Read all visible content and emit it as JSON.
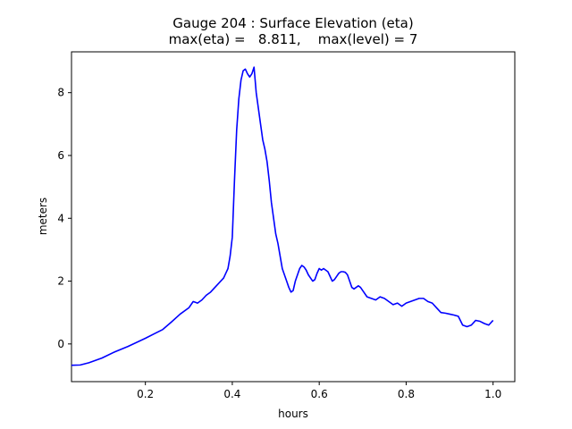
{
  "chart_data": {
    "type": "line",
    "title": "Gauge 204 : Surface Elevation (eta)",
    "subtitle": "max(eta) =   8.811,    max(level) = 7",
    "xlabel": "hours",
    "ylabel": "meters",
    "xlim": [
      0.03,
      1.05
    ],
    "ylim": [
      -1.2,
      9.3
    ],
    "x_ticks": [
      0.2,
      0.4,
      0.6,
      0.8,
      1.0
    ],
    "x_tick_labels": [
      "0.2",
      "0.4",
      "0.6",
      "0.8",
      "1.0"
    ],
    "y_ticks": [
      0,
      2,
      4,
      6,
      8
    ],
    "y_tick_labels": [
      "0",
      "2",
      "4",
      "6",
      "8"
    ],
    "grid": false,
    "series": [
      {
        "color": "#0000ff",
        "x": [
          0.03,
          0.05,
          0.07,
          0.1,
          0.13,
          0.16,
          0.2,
          0.22,
          0.24,
          0.26,
          0.28,
          0.3,
          0.31,
          0.32,
          0.33,
          0.34,
          0.35,
          0.36,
          0.37,
          0.38,
          0.39,
          0.395,
          0.4,
          0.405,
          0.41,
          0.415,
          0.42,
          0.425,
          0.43,
          0.435,
          0.44,
          0.445,
          0.45,
          0.455,
          0.46,
          0.465,
          0.47,
          0.475,
          0.48,
          0.485,
          0.49,
          0.495,
          0.5,
          0.505,
          0.51,
          0.515,
          0.52,
          0.525,
          0.53,
          0.535,
          0.54,
          0.545,
          0.55,
          0.555,
          0.56,
          0.565,
          0.57,
          0.575,
          0.58,
          0.585,
          0.59,
          0.595,
          0.6,
          0.605,
          0.61,
          0.615,
          0.62,
          0.625,
          0.63,
          0.635,
          0.64,
          0.645,
          0.65,
          0.655,
          0.66,
          0.665,
          0.67,
          0.675,
          0.68,
          0.685,
          0.69,
          0.695,
          0.7,
          0.71,
          0.72,
          0.73,
          0.74,
          0.75,
          0.76,
          0.77,
          0.78,
          0.79,
          0.8,
          0.81,
          0.82,
          0.83,
          0.84,
          0.85,
          0.86,
          0.87,
          0.88,
          0.89,
          0.9,
          0.91,
          0.92,
          0.93,
          0.94,
          0.95,
          0.96,
          0.97,
          0.98,
          0.99,
          1.0
        ],
        "y": [
          -0.68,
          -0.67,
          -0.6,
          -0.45,
          -0.25,
          -0.08,
          0.18,
          0.32,
          0.46,
          0.7,
          0.95,
          1.15,
          1.35,
          1.3,
          1.4,
          1.55,
          1.65,
          1.8,
          1.95,
          2.1,
          2.4,
          2.8,
          3.4,
          5.2,
          6.8,
          7.8,
          8.4,
          8.7,
          8.75,
          8.6,
          8.5,
          8.6,
          8.811,
          8.0,
          7.5,
          7.0,
          6.5,
          6.2,
          5.8,
          5.2,
          4.5,
          4.0,
          3.5,
          3.2,
          2.8,
          2.4,
          2.2,
          2.0,
          1.8,
          1.65,
          1.7,
          2.0,
          2.2,
          2.4,
          2.5,
          2.45,
          2.35,
          2.2,
          2.1,
          2.0,
          2.05,
          2.25,
          2.4,
          2.35,
          2.4,
          2.35,
          2.3,
          2.15,
          2.0,
          2.05,
          2.15,
          2.25,
          2.3,
          2.3,
          2.28,
          2.2,
          2.0,
          1.8,
          1.75,
          1.8,
          1.85,
          1.8,
          1.7,
          1.5,
          1.45,
          1.4,
          1.5,
          1.45,
          1.35,
          1.25,
          1.3,
          1.2,
          1.3,
          1.35,
          1.4,
          1.45,
          1.45,
          1.35,
          1.3,
          1.15,
          1.0,
          0.98,
          0.95,
          0.92,
          0.88,
          0.6,
          0.55,
          0.6,
          0.75,
          0.72,
          0.65,
          0.6,
          0.75
        ]
      }
    ]
  }
}
